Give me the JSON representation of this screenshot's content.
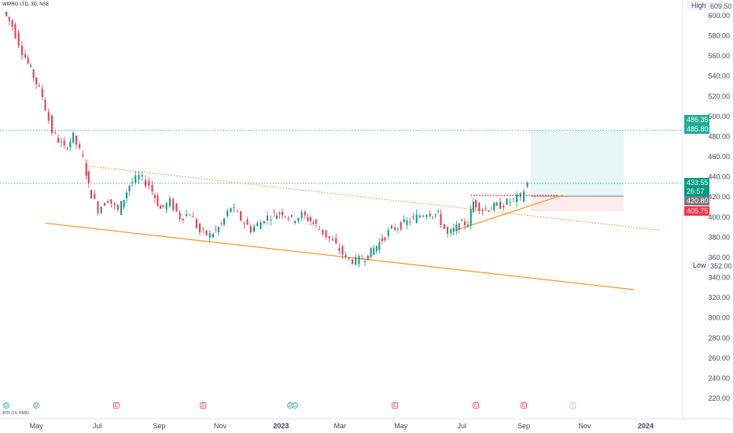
{
  "symbol": "WIPRO LTD, 3D, NSE",
  "indicator_label": "ATR (14, RMA)",
  "high": {
    "label": "High",
    "value": "609.50"
  },
  "low": {
    "label": "Low",
    "value": "352.00"
  },
  "price_tags": [
    {
      "text": "486.35",
      "price": 486.35,
      "color": "#22ab94"
    },
    {
      "text": "485.80",
      "price": 485.8,
      "color": "#22ab94"
    },
    {
      "text": "433.55",
      "price": 433.55,
      "color": "#089981",
      "sub": "26:57"
    },
    {
      "text": "420.80",
      "price": 420.8,
      "color": "#787b86"
    },
    {
      "text": "405.75",
      "price": 405.75,
      "color": "#f23645"
    }
  ],
  "chart_data": {
    "type": "candlestick",
    "y_axis_ticks": [
      "220.00",
      "240.00",
      "260.00",
      "280.00",
      "300.00",
      "320.00",
      "340.00",
      "360.00",
      "380.00",
      "400.00",
      "420.00",
      "440.00",
      "460.00",
      "480.00",
      "500.00",
      "520.00",
      "540.00",
      "560.00",
      "580.00",
      "600.00"
    ],
    "ylim": [
      210,
      615
    ],
    "x_axis_ticks": [
      "May",
      "Jul",
      "Sep",
      "Nov",
      "2023",
      "Mar",
      "May",
      "Jul",
      "Sep",
      "Nov",
      "2024"
    ],
    "x_tick_dates": [
      "2022-05-01",
      "2022-07-01",
      "2022-09-01",
      "2022-11-01",
      "2023-01-01",
      "2023-03-01",
      "2023-05-01",
      "2023-07-01",
      "2023-09-01",
      "2023-11-01",
      "2024-01-01"
    ],
    "close_series": [
      [
        "2022-04-01",
        604
      ],
      [
        "2022-04-10",
        590
      ],
      [
        "2022-04-20",
        565
      ],
      [
        "2022-05-01",
        540
      ],
      [
        "2022-05-10",
        520
      ],
      [
        "2022-05-20",
        485
      ],
      [
        "2022-06-01",
        468
      ],
      [
        "2022-06-10",
        480
      ],
      [
        "2022-06-20",
        458
      ],
      [
        "2022-06-25",
        430
      ],
      [
        "2022-07-05",
        408
      ],
      [
        "2022-07-15",
        418
      ],
      [
        "2022-07-25",
        406
      ],
      [
        "2022-08-05",
        432
      ],
      [
        "2022-08-15",
        440
      ],
      [
        "2022-08-25",
        432
      ],
      [
        "2022-09-05",
        408
      ],
      [
        "2022-09-15",
        415
      ],
      [
        "2022-09-25",
        400
      ],
      [
        "2022-10-05",
        404
      ],
      [
        "2022-10-15",
        385
      ],
      [
        "2022-10-25",
        382
      ],
      [
        "2022-11-05",
        392
      ],
      [
        "2022-11-15",
        410
      ],
      [
        "2022-11-25",
        398
      ],
      [
        "2022-12-05",
        388
      ],
      [
        "2022-12-15",
        395
      ],
      [
        "2022-12-25",
        402
      ],
      [
        "2023-01-05",
        405
      ],
      [
        "2023-01-15",
        398
      ],
      [
        "2023-01-25",
        402
      ],
      [
        "2023-02-05",
        395
      ],
      [
        "2023-02-15",
        385
      ],
      [
        "2023-02-25",
        375
      ],
      [
        "2023-03-10",
        360
      ],
      [
        "2023-03-20",
        356
      ],
      [
        "2023-04-01",
        362
      ],
      [
        "2023-04-15",
        378
      ],
      [
        "2023-04-25",
        388
      ],
      [
        "2023-05-10",
        395
      ],
      [
        "2023-05-20",
        400
      ],
      [
        "2023-05-30",
        405
      ],
      [
        "2023-06-10",
        402
      ],
      [
        "2023-06-20",
        382
      ],
      [
        "2023-07-01",
        392
      ],
      [
        "2023-07-10",
        395
      ],
      [
        "2023-07-15",
        415
      ],
      [
        "2023-07-25",
        408
      ],
      [
        "2023-08-05",
        410
      ],
      [
        "2023-08-15",
        413
      ],
      [
        "2023-08-25",
        417
      ],
      [
        "2023-09-01",
        420
      ],
      [
        "2023-09-08",
        433.55
      ]
    ],
    "trendlines": [
      {
        "name": "lower-channel",
        "style": "solid",
        "from": [
          "2022-05-10",
          394
        ],
        "to": [
          "2023-12-20",
          328
        ]
      },
      {
        "name": "upper-channel",
        "style": "dotted",
        "from": [
          "2022-06-20",
          451
        ],
        "to": [
          "2024-01-15",
          387
        ]
      },
      {
        "name": "ascending-support",
        "style": "solid",
        "from": [
          "2023-06-25",
          387
        ],
        "to": [
          "2023-10-10",
          422
        ]
      }
    ],
    "horizontal_levels": [
      {
        "price": 486.35,
        "style": "dotted",
        "color": "#22ab94"
      },
      {
        "price": 433.55,
        "style": "dotted",
        "color": "#089981"
      },
      {
        "price": 421.5,
        "style": "dotted",
        "color": "#f23645",
        "from": "2023-07-10",
        "to": "2023-10-05"
      }
    ],
    "position": {
      "type": "long",
      "from": "2023-09-08",
      "to": "2023-12-10",
      "entry": 420.8,
      "target": 485.8,
      "stop": 405.75
    },
    "event_markers": [
      {
        "date": "2022-04-01",
        "letter": "D",
        "kind": "dividend"
      },
      {
        "date": "2022-05-01",
        "letter": "D",
        "kind": "dividend"
      },
      {
        "date": "2022-07-20",
        "letter": "E",
        "kind": "earnings"
      },
      {
        "date": "2022-10-15",
        "letter": "E",
        "kind": "earnings"
      },
      {
        "date": "2023-01-10",
        "letter": "D",
        "kind": "dividend"
      },
      {
        "date": "2023-01-15",
        "letter": "D",
        "kind": "dividend"
      },
      {
        "date": "2023-04-25",
        "letter": "E",
        "kind": "earnings"
      },
      {
        "date": "2023-07-15",
        "letter": "E",
        "kind": "earnings"
      },
      {
        "date": "2023-09-01",
        "letter": "E",
        "kind": "earnings"
      },
      {
        "date": "2023-10-20",
        "letter": "E",
        "kind": "future-earnings"
      }
    ]
  }
}
